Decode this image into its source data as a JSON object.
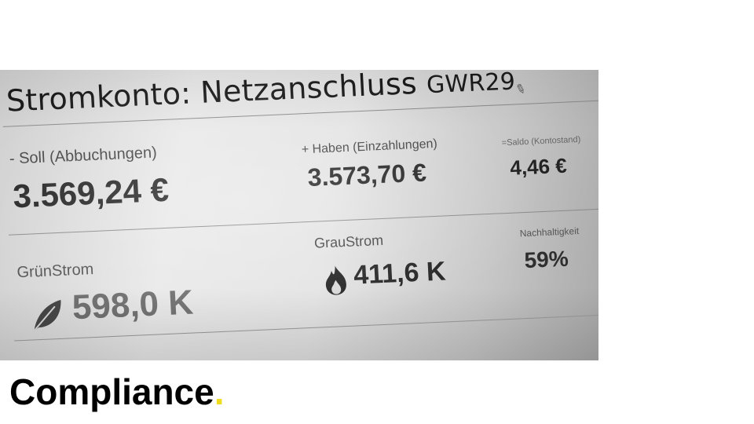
{
  "account": {
    "title_main": "Stromkonto: Netzanschluss ",
    "title_id": "GWR29",
    "edit_icon": "pencil-icon"
  },
  "soll": {
    "label": "- Soll (Abbuchungen)",
    "value": "3.569,24 €"
  },
  "haben": {
    "label": "+ Haben (Einzahlungen)",
    "value": "3.573,70 €"
  },
  "saldo": {
    "label": "=Saldo (Kontostand)",
    "value": "4,46 €"
  },
  "gruenstrom": {
    "label": "GrünStrom",
    "value": "598,0 K",
    "icon": "leaf-icon"
  },
  "graustrom": {
    "label": "GrauStrom",
    "value": "411,6 K",
    "icon": "flame-icon"
  },
  "nachhaltigkeit": {
    "label": "Nachhaltigkeit",
    "value": "59%"
  },
  "caption": {
    "text": "Compliance",
    "dot": ".",
    "dot_color": "#f0dc1e"
  }
}
